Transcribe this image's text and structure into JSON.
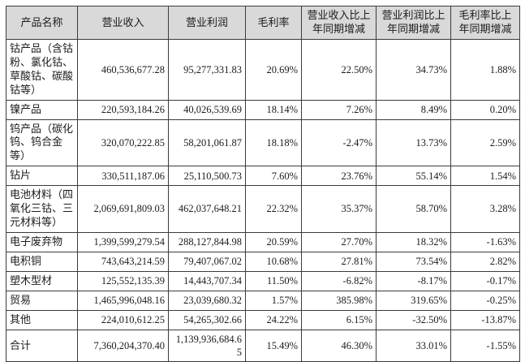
{
  "table": {
    "title": "product-segment-operating-results",
    "columns": [
      "产品名称",
      "营业收入",
      "营业利润",
      "毛利率",
      "营业收入比上年同期增减",
      "营业利润比上年同期增减",
      "毛利率比上年同期增减"
    ],
    "rows": [
      [
        "钴产品（含钴粉、氯化钴、草酸钴、碳酸钴等）",
        "460,536,677.28",
        "95,277,331.83",
        "20.69%",
        "22.50%",
        "34.73%",
        "1.88%"
      ],
      [
        "镍产品",
        "220,593,184.26",
        "40,026,539.69",
        "18.14%",
        "7.26%",
        "8.49%",
        "0.20%"
      ],
      [
        "钨产品（碳化钨、钨合金等）",
        "320,070,222.85",
        "58,201,061.87",
        "18.18%",
        "-2.47%",
        "13.73%",
        "2.59%"
      ],
      [
        "钻片",
        "330,511,187.06",
        "25,110,500.73",
        "7.60%",
        "23.76%",
        "55.14%",
        "1.54%"
      ],
      [
        "电池材料（四氧化三钴、三元材料等）",
        "2,069,691,809.03",
        "462,037,648.21",
        "22.32%",
        "35.37%",
        "58.70%",
        "3.28%"
      ],
      [
        "电子废弃物",
        "1,399,599,279.54",
        "288,127,844.98",
        "20.59%",
        "27.70%",
        "18.32%",
        "-1.63%"
      ],
      [
        "电积铜",
        "743,643,214.59",
        "79,407,067.02",
        "10.68%",
        "27.81%",
        "73.54%",
        "2.82%"
      ],
      [
        "塑木型材",
        "125,552,135.39",
        "14,443,707.34",
        "11.50%",
        "-6.82%",
        "-8.17%",
        "-0.17%"
      ],
      [
        "贸易",
        "1,465,996,048.16",
        "23,039,680.32",
        "1.57%",
        "385.98%",
        "319.65%",
        "-0.25%"
      ],
      [
        "其他",
        "224,010,612.25",
        "54,265,302.66",
        "24.22%",
        "6.15%",
        "-32.50%",
        "-13.87%"
      ],
      [
        "合计",
        "7,360,204,370.40",
        "1,139,936,684.65",
        "15.49%",
        "46.30%",
        "33.01%",
        "-1.55%"
      ]
    ],
    "colors": {
      "header_bg": "#d9d9d9",
      "border": "#3b3b3b",
      "text": "#1c1c1c",
      "page_bg": "#ffffff"
    }
  }
}
